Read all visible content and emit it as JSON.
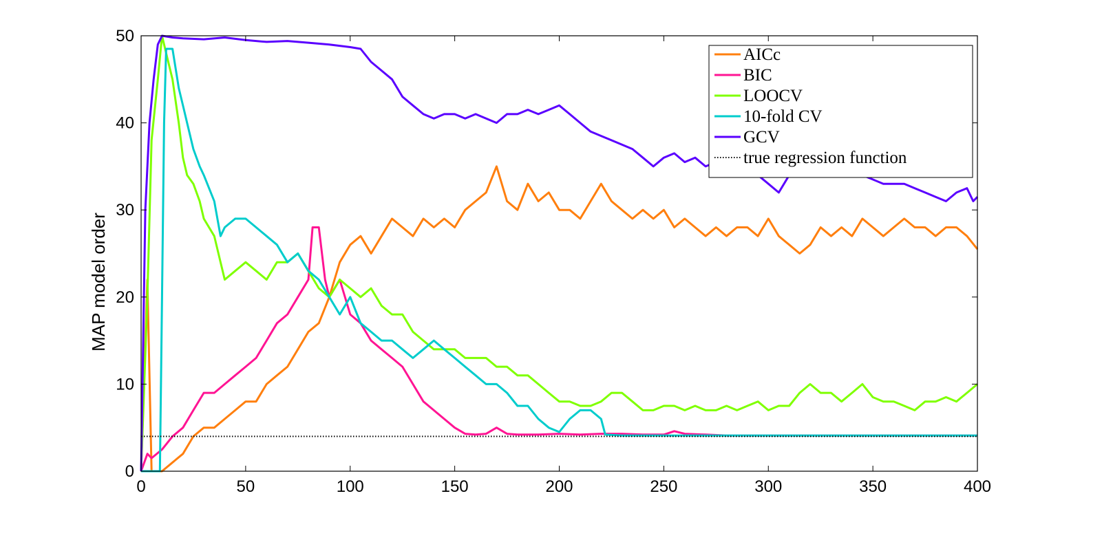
{
  "chart_data": {
    "type": "line",
    "title": "",
    "xlabel": "",
    "ylabel": "MAP model order",
    "xlim": [
      0,
      400
    ],
    "ylim": [
      0,
      50
    ],
    "xticks": [
      0,
      50,
      100,
      150,
      200,
      250,
      300,
      350,
      400
    ],
    "yticks": [
      0,
      10,
      20,
      30,
      40,
      50
    ],
    "grid": false,
    "legend_position": "top-right",
    "series": [
      {
        "name": "AICc",
        "color": "#ff7f0e",
        "style": "solid",
        "x": [
          0,
          3,
          5,
          10,
          15,
          20,
          25,
          30,
          35,
          40,
          45,
          50,
          55,
          60,
          65,
          70,
          75,
          80,
          85,
          90,
          95,
          100,
          105,
          110,
          115,
          120,
          125,
          130,
          135,
          140,
          145,
          150,
          155,
          160,
          165,
          170,
          175,
          180,
          185,
          190,
          195,
          200,
          205,
          210,
          215,
          220,
          225,
          230,
          235,
          240,
          245,
          250,
          255,
          260,
          265,
          270,
          275,
          280,
          285,
          290,
          295,
          300,
          305,
          310,
          315,
          320,
          325,
          330,
          335,
          340,
          345,
          350,
          355,
          360,
          365,
          370,
          375,
          380,
          385,
          390,
          395,
          400
        ],
        "y": [
          0,
          22,
          0,
          0,
          1,
          2,
          4,
          5,
          5,
          6,
          7,
          8,
          8,
          10,
          11,
          12,
          14,
          16,
          17,
          20,
          24,
          26,
          27,
          25,
          27,
          29,
          28,
          27,
          29,
          28,
          29,
          28,
          30,
          31,
          32,
          35,
          31,
          30,
          33,
          31,
          32,
          30,
          30,
          29,
          31,
          33,
          31,
          30,
          29,
          30,
          29,
          30,
          28,
          29,
          28,
          27,
          28,
          27,
          28,
          28,
          27,
          29,
          27,
          26,
          25,
          26,
          28,
          27,
          28,
          27,
          29,
          28,
          27,
          28,
          29,
          28,
          28,
          27,
          28,
          28,
          27,
          25.5
        ]
      },
      {
        "name": "BIC",
        "color": "#ff1493",
        "style": "solid",
        "x": [
          0,
          3,
          5,
          10,
          15,
          20,
          25,
          30,
          35,
          40,
          45,
          50,
          55,
          60,
          65,
          70,
          75,
          80,
          82,
          85,
          88,
          90,
          95,
          100,
          105,
          110,
          115,
          120,
          125,
          130,
          135,
          140,
          145,
          150,
          155,
          160,
          165,
          170,
          175,
          180,
          190,
          200,
          210,
          220,
          230,
          240,
          250,
          255,
          260,
          270,
          280,
          300,
          320,
          340,
          360,
          380,
          400
        ],
        "y": [
          0,
          2,
          1.5,
          2.5,
          4,
          5,
          7,
          9,
          9,
          10,
          11,
          12,
          13,
          15,
          17,
          18,
          20,
          22,
          28,
          28,
          22,
          20,
          22,
          18,
          17,
          15,
          14,
          13,
          12,
          10,
          8,
          7,
          6,
          5,
          4.3,
          4.2,
          4.3,
          5,
          4.3,
          4.2,
          4.2,
          4.3,
          4.2,
          4.3,
          4.3,
          4.2,
          4.2,
          4.6,
          4.3,
          4.2,
          4.1,
          4.1,
          4.1,
          4.1,
          4.1,
          4.1,
          4.1
        ]
      },
      {
        "name": "LOOCV",
        "color": "#7fff00",
        "style": "solid",
        "x": [
          0,
          3,
          5,
          8,
          10,
          12,
          15,
          18,
          20,
          22,
          25,
          28,
          30,
          35,
          38,
          40,
          45,
          50,
          55,
          60,
          65,
          70,
          75,
          80,
          85,
          90,
          95,
          100,
          105,
          110,
          115,
          120,
          125,
          130,
          135,
          140,
          145,
          150,
          155,
          160,
          165,
          170,
          175,
          180,
          185,
          190,
          195,
          200,
          205,
          210,
          215,
          220,
          225,
          230,
          235,
          240,
          245,
          250,
          255,
          260,
          265,
          270,
          275,
          280,
          285,
          290,
          295,
          300,
          305,
          310,
          315,
          320,
          325,
          330,
          335,
          340,
          345,
          350,
          355,
          360,
          365,
          370,
          375,
          380,
          385,
          390,
          395,
          400
        ],
        "y": [
          0,
          20,
          38,
          45,
          50,
          48,
          45,
          40,
          36,
          34,
          33,
          31,
          29,
          27,
          24,
          22,
          23,
          24,
          23,
          22,
          24,
          24,
          25,
          23,
          21,
          20,
          22,
          21,
          20,
          21,
          19,
          18,
          18,
          16,
          15,
          14,
          14,
          14,
          13,
          13,
          13,
          12,
          12,
          11,
          11,
          10,
          9,
          8,
          8,
          7.5,
          7.5,
          8,
          9,
          9,
          8,
          7,
          7,
          7.5,
          7.5,
          7,
          7.5,
          7,
          7,
          7.5,
          7,
          7.5,
          8,
          7,
          7.5,
          7.5,
          9,
          10,
          9,
          9,
          8,
          9,
          10,
          8.5,
          8,
          8,
          7.5,
          7,
          8,
          8,
          8.5,
          8,
          9,
          10
        ]
      },
      {
        "name": "10-fold CV",
        "color": "#00cccc",
        "style": "solid",
        "x": [
          0,
          9,
          10,
          11,
          12,
          15,
          18,
          20,
          22,
          25,
          28,
          30,
          35,
          38,
          40,
          45,
          50,
          55,
          60,
          65,
          70,
          75,
          80,
          85,
          90,
          95,
          100,
          105,
          110,
          115,
          120,
          125,
          130,
          135,
          140,
          145,
          150,
          155,
          160,
          165,
          170,
          175,
          180,
          185,
          190,
          195,
          200,
          205,
          210,
          215,
          220,
          222,
          230,
          240,
          250,
          260,
          280,
          300,
          320,
          340,
          360,
          380,
          400
        ],
        "y": [
          0,
          0,
          20,
          40,
          48.5,
          48.5,
          44,
          42,
          40,
          37,
          35,
          34,
          31,
          27,
          28,
          29,
          29,
          28,
          27,
          26,
          24,
          25,
          23,
          22,
          20,
          18,
          20,
          17,
          16,
          15,
          15,
          14,
          13,
          14,
          15,
          14,
          13,
          12,
          11,
          10,
          10,
          9,
          7.5,
          7.5,
          6,
          5,
          4.5,
          6,
          7,
          7,
          6,
          4.2,
          4.1,
          4.1,
          4.1,
          4.1,
          4.1,
          4.1,
          4.1,
          4.1,
          4.1,
          4.1,
          4.1
        ]
      },
      {
        "name": "GCV",
        "color": "#5a00ff",
        "style": "solid",
        "x": [
          0,
          2,
          4,
          6,
          8,
          10,
          15,
          20,
          30,
          40,
          50,
          60,
          70,
          80,
          90,
          100,
          105,
          110,
          115,
          120,
          125,
          130,
          135,
          140,
          145,
          150,
          155,
          160,
          165,
          170,
          175,
          180,
          185,
          190,
          195,
          200,
          205,
          210,
          215,
          220,
          225,
          230,
          235,
          240,
          245,
          250,
          255,
          260,
          265,
          270,
          275,
          280,
          285,
          290,
          295,
          300,
          305,
          310,
          315,
          320,
          325,
          330,
          335,
          340,
          345,
          350,
          355,
          360,
          365,
          370,
          375,
          380,
          385,
          390,
          395,
          398,
          400
        ],
        "y": [
          0,
          30,
          40,
          45,
          49,
          50,
          49.8,
          49.7,
          49.6,
          49.8,
          49.5,
          49.3,
          49.4,
          49.2,
          49,
          48.7,
          48.5,
          47,
          46,
          45,
          43,
          42,
          41,
          40.5,
          41,
          41,
          40.5,
          41,
          40.5,
          40,
          41,
          41,
          41.5,
          41,
          41.5,
          42,
          41,
          40,
          39,
          38.5,
          38,
          37.5,
          37,
          36,
          35,
          36,
          36.5,
          35.5,
          36,
          35,
          35.5,
          36,
          35,
          34,
          34,
          33,
          32,
          34,
          35,
          35,
          36,
          35,
          35,
          34.5,
          34,
          33.5,
          33,
          33,
          33,
          32.5,
          32,
          31.5,
          31,
          32,
          32.5,
          31,
          31.5
        ]
      },
      {
        "name": "true regression function",
        "color": "#000000",
        "style": "dotted",
        "x": [
          0,
          400
        ],
        "y": [
          4,
          4
        ]
      }
    ]
  }
}
